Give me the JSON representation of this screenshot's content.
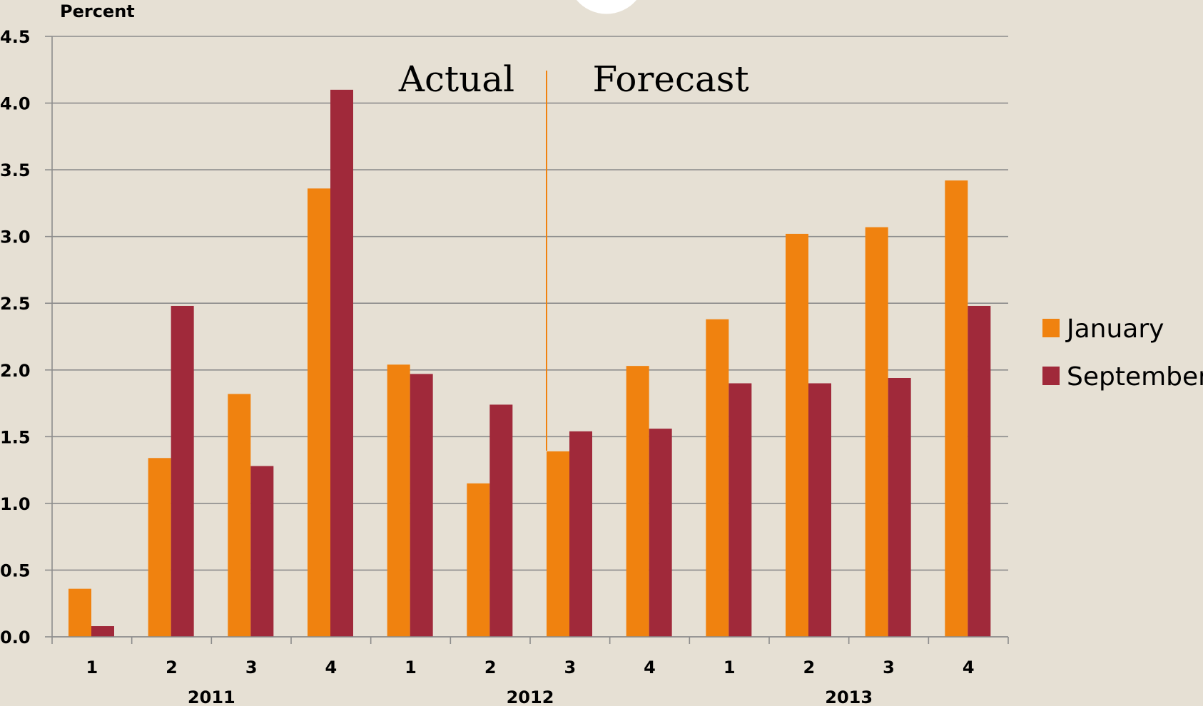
{
  "chart_data": {
    "type": "bar",
    "ylabel": "Percent",
    "ylim": [
      0,
      4.5
    ],
    "yticks": [
      "0.0",
      "0.5",
      "1.0",
      "1.5",
      "2.0",
      "2.5",
      "3.0",
      "3.5",
      "4.0",
      "4.5"
    ],
    "categories": [
      "1",
      "2",
      "3",
      "4",
      "1",
      "2",
      "3",
      "4",
      "1",
      "2",
      "3",
      "4"
    ],
    "year_groups": [
      {
        "label": "2011",
        "count": 4
      },
      {
        "label": "2012",
        "count": 4
      },
      {
        "label": "2013",
        "count": 4
      }
    ],
    "series": [
      {
        "name": "January",
        "color": "#f0820f",
        "values": [
          0.36,
          1.34,
          1.82,
          3.36,
          2.04,
          1.15,
          1.39,
          2.03,
          2.38,
          3.02,
          3.07,
          3.42
        ]
      },
      {
        "name": "September",
        "color": "#a0293a",
        "values": [
          0.08,
          2.48,
          1.28,
          4.1,
          1.97,
          1.74,
          1.54,
          1.56,
          1.9,
          1.9,
          1.94,
          2.48
        ]
      }
    ],
    "annotations": {
      "left": "Actual",
      "right": "Forecast",
      "divider_color": "#f0820f"
    },
    "grid": true,
    "legend_position": "right"
  }
}
